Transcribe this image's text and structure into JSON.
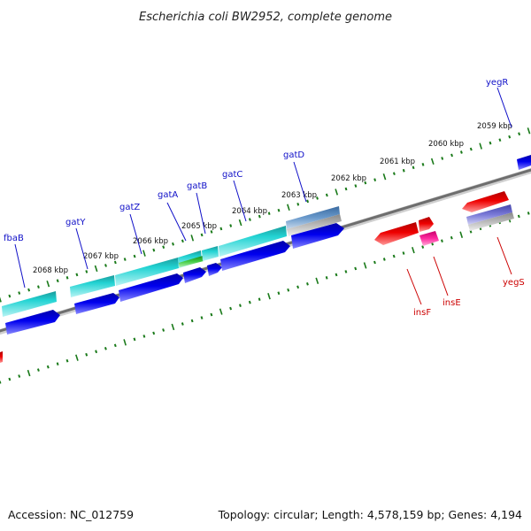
{
  "title": "Escherichia coli BW2952, complete genome",
  "footer": {
    "accession": "Accession: NC_012759",
    "summary": "Topology: circular; Length: 4,578,159 bp; Genes: 4,194"
  },
  "colors": {
    "forward_label": "#1010c8",
    "reverse_label": "#cc0000",
    "tick": "#1a7a1a",
    "backbone": "#707070"
  },
  "kbp_labels": [
    "2068 kbp",
    "2067 kbp",
    "2066 kbp",
    "2065 kbp",
    "2064 kbp",
    "2063 kbp",
    "2062 kbp",
    "2061 kbp",
    "2060 kbp",
    "2059 kbp"
  ],
  "genes_forward": [
    "fbaB",
    "gatY",
    "gatZ",
    "gatA",
    "gatB",
    "gatC",
    "gatD",
    "yegR"
  ],
  "genes_reverse": [
    "insF",
    "insE",
    "yegS"
  ]
}
